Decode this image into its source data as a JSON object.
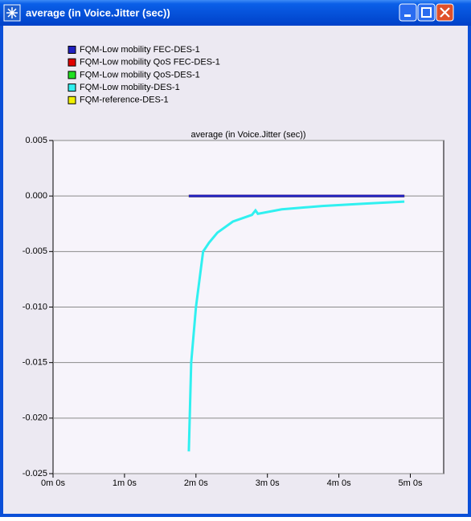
{
  "window_title": "average (in Voice.Jitter (sec))",
  "chart_data": {
    "type": "line",
    "title": "average (in Voice.Jitter (sec))",
    "xlim": [
      0,
      328
    ],
    "ylim": [
      -0.025,
      0.005
    ],
    "xticks": [
      {
        "value": 0,
        "label": "0m 0s"
      },
      {
        "value": 60,
        "label": "1m 0s"
      },
      {
        "value": 120,
        "label": "2m 0s"
      },
      {
        "value": 180,
        "label": "3m 0s"
      },
      {
        "value": 240,
        "label": "4m 0s"
      },
      {
        "value": 300,
        "label": "5m 0s"
      }
    ],
    "yticks": [
      0.005,
      {
        "value": 0,
        "label": "0.000"
      },
      -0.005,
      {
        "value": -0.01,
        "label": "-0.010"
      },
      -0.015,
      {
        "value": -0.02,
        "label": "-0.020"
      },
      -0.025
    ],
    "grid": true,
    "series": [
      {
        "name": "FQM-Low mobility FEC-DES-1",
        "color": "#2020c0",
        "x": [
          114,
          295
        ],
        "values": [
          0,
          0
        ]
      },
      {
        "name": "FQM-Low mobility QoS FEC-DES-1",
        "color": "#e00000",
        "x": [
          114,
          295
        ],
        "values": [
          0,
          0
        ]
      },
      {
        "name": "FQM-Low mobility QoS-DES-1",
        "color": "#20e020",
        "x": [
          114,
          295
        ],
        "values": [
          0,
          0
        ]
      },
      {
        "name": "FQM-Low mobility-DES-1",
        "color": "#30f0f0",
        "x": [
          114,
          116,
          120,
          126,
          131,
          138,
          151,
          167,
          170,
          172,
          192,
          226,
          259,
          295
        ],
        "values": [
          -0.023,
          -0.015,
          -0.01,
          -0.005,
          -0.0042,
          -0.0033,
          -0.0023,
          -0.0017,
          -0.0013,
          -0.0016,
          -0.0012,
          -0.0009,
          -0.0007,
          -0.0005
        ]
      },
      {
        "name": "FQM-reference-DES-1",
        "color": "#f0f000",
        "x": [
          114,
          295
        ],
        "values": [
          0,
          0
        ]
      }
    ]
  }
}
